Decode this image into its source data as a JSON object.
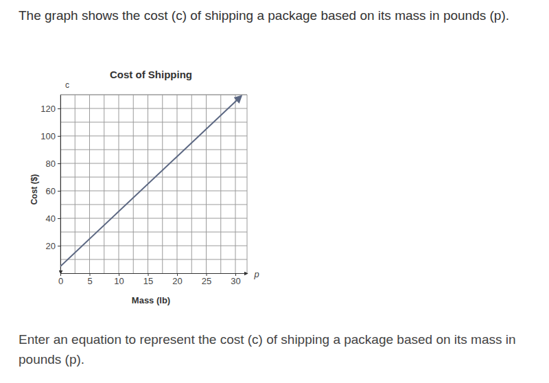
{
  "header": {
    "question": "The graph shows the cost (c) of shipping a package based on its mass in pounds (p)."
  },
  "chart_data": {
    "type": "line",
    "title": "Cost of Shipping",
    "x_label": "Mass (lb)",
    "y_label": "Cost ($)",
    "annotations": [
      "c",
      "p"
    ],
    "x": [
      0,
      31
    ],
    "values": [
      5,
      129
    ],
    "color": "#5b6782",
    "xlim": [
      0,
      32
    ],
    "ylim": [
      0,
      130
    ],
    "xticks": [
      0,
      5,
      10,
      15,
      20,
      25,
      30
    ],
    "yticks": [
      20,
      40,
      60,
      80,
      100,
      120
    ],
    "grid": true
  },
  "footer": {
    "prompt": "Enter an equation to represent the cost (c) of shipping a package based on its mass in pounds (p)."
  }
}
